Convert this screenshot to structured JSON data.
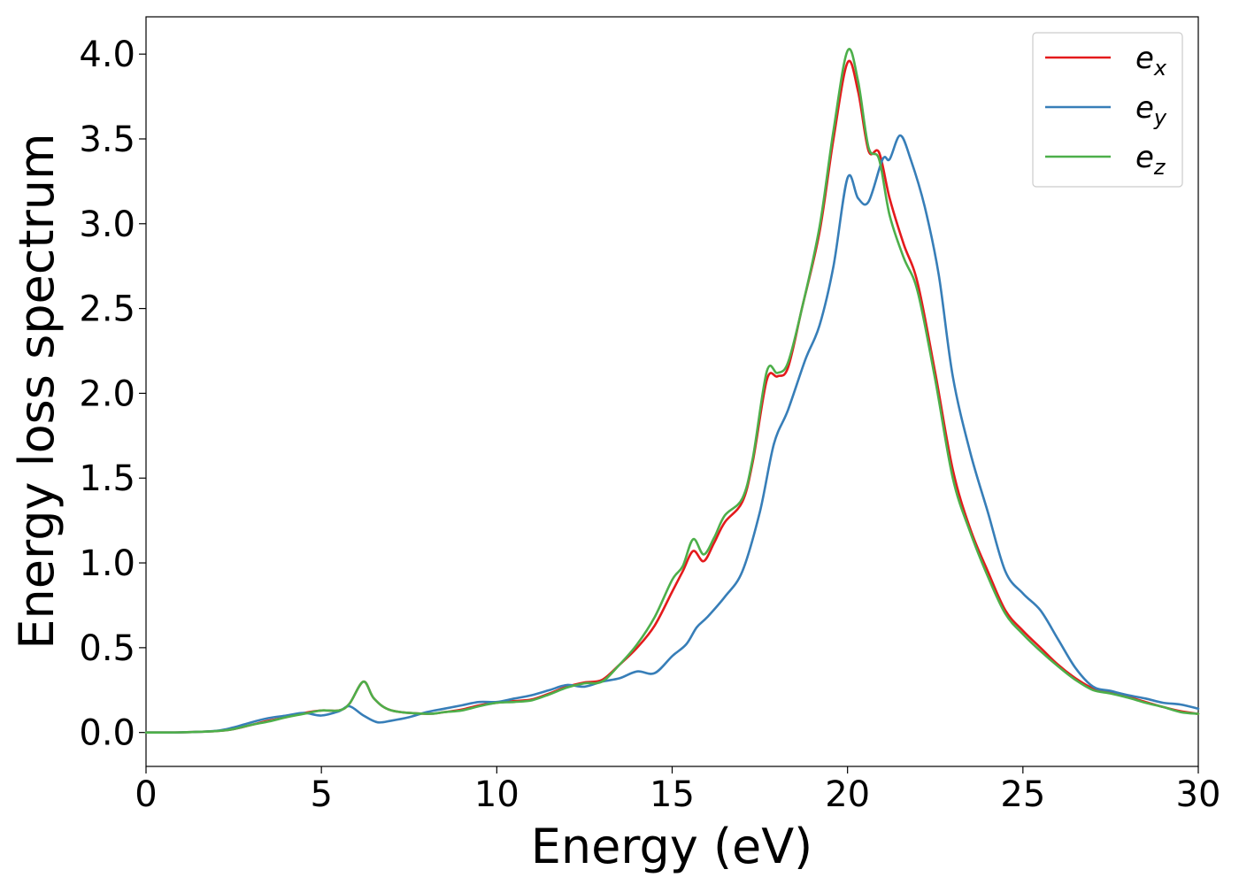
{
  "chart_data": {
    "type": "line",
    "title": "",
    "xlabel": "Energy (eV)",
    "ylabel": "Energy loss spectrum",
    "xlim": [
      0,
      30
    ],
    "ylim": [
      -0.2,
      4.22
    ],
    "xticks": [
      0,
      5,
      10,
      15,
      20,
      25,
      30
    ],
    "xtick_labels": [
      "0",
      "5",
      "10",
      "15",
      "20",
      "25",
      "30"
    ],
    "yticks": [
      0.0,
      0.5,
      1.0,
      1.5,
      2.0,
      2.5,
      3.0,
      3.5,
      4.0
    ],
    "ytick_labels": [
      "0.0",
      "0.5",
      "1.0",
      "1.5",
      "2.0",
      "2.5",
      "3.0",
      "3.5",
      "4.0"
    ],
    "legend_position": "top-right",
    "series": [
      {
        "name": "e_x",
        "label_main": "e",
        "label_sub": "x",
        "color": "#e41a1c",
        "points": [
          [
            0,
            0
          ],
          [
            1,
            0.001
          ],
          [
            2,
            0.008
          ],
          [
            2.5,
            0.02
          ],
          [
            3,
            0.045
          ],
          [
            3.5,
            0.07
          ],
          [
            4,
            0.09
          ],
          [
            4.5,
            0.115
          ],
          [
            5,
            0.13
          ],
          [
            5.5,
            0.13
          ],
          [
            5.8,
            0.17
          ],
          [
            6.2,
            0.3
          ],
          [
            6.5,
            0.2
          ],
          [
            7,
            0.13
          ],
          [
            8,
            0.11
          ],
          [
            8.5,
            0.12
          ],
          [
            9,
            0.135
          ],
          [
            9.5,
            0.16
          ],
          [
            10,
            0.175
          ],
          [
            10.5,
            0.185
          ],
          [
            11,
            0.195
          ],
          [
            11.5,
            0.23
          ],
          [
            12,
            0.27
          ],
          [
            12.5,
            0.295
          ],
          [
            13,
            0.31
          ],
          [
            13.5,
            0.4
          ],
          [
            14,
            0.5
          ],
          [
            14.5,
            0.63
          ],
          [
            15,
            0.83
          ],
          [
            15.3,
            0.95
          ],
          [
            15.6,
            1.07
          ],
          [
            15.9,
            1.01
          ],
          [
            16.2,
            1.12
          ],
          [
            16.5,
            1.24
          ],
          [
            17,
            1.36
          ],
          [
            17.3,
            1.6
          ],
          [
            17.7,
            2.08
          ],
          [
            18,
            2.1
          ],
          [
            18.3,
            2.15
          ],
          [
            18.7,
            2.5
          ],
          [
            19.2,
            2.95
          ],
          [
            19.6,
            3.5
          ],
          [
            20,
            3.95
          ],
          [
            20.3,
            3.78
          ],
          [
            20.6,
            3.43
          ],
          [
            20.9,
            3.42
          ],
          [
            21.2,
            3.15
          ],
          [
            21.6,
            2.88
          ],
          [
            22,
            2.65
          ],
          [
            22.5,
            2.12
          ],
          [
            23,
            1.55
          ],
          [
            23.5,
            1.2
          ],
          [
            24,
            0.95
          ],
          [
            24.5,
            0.72
          ],
          [
            25,
            0.6
          ],
          [
            25.5,
            0.5
          ],
          [
            26,
            0.4
          ],
          [
            26.5,
            0.32
          ],
          [
            27,
            0.26
          ],
          [
            27.5,
            0.235
          ],
          [
            28,
            0.21
          ],
          [
            28.5,
            0.18
          ],
          [
            29,
            0.15
          ],
          [
            29.5,
            0.125
          ],
          [
            30,
            0.11
          ]
        ]
      },
      {
        "name": "e_y",
        "label_main": "e",
        "label_sub": "y",
        "color": "#377eb8",
        "points": [
          [
            0,
            0
          ],
          [
            1,
            0.001
          ],
          [
            2,
            0.01
          ],
          [
            2.5,
            0.03
          ],
          [
            3,
            0.06
          ],
          [
            3.5,
            0.085
          ],
          [
            4,
            0.1
          ],
          [
            4.5,
            0.115
          ],
          [
            5,
            0.1
          ],
          [
            5.5,
            0.125
          ],
          [
            5.8,
            0.155
          ],
          [
            6.2,
            0.1
          ],
          [
            6.6,
            0.06
          ],
          [
            7,
            0.07
          ],
          [
            7.5,
            0.09
          ],
          [
            8,
            0.12
          ],
          [
            8.5,
            0.14
          ],
          [
            9,
            0.16
          ],
          [
            9.5,
            0.18
          ],
          [
            10,
            0.18
          ],
          [
            10.5,
            0.2
          ],
          [
            11,
            0.22
          ],
          [
            11.5,
            0.25
          ],
          [
            12,
            0.28
          ],
          [
            12.5,
            0.27
          ],
          [
            13,
            0.3
          ],
          [
            13.5,
            0.32
          ],
          [
            14,
            0.36
          ],
          [
            14.5,
            0.35
          ],
          [
            15,
            0.45
          ],
          [
            15.4,
            0.52
          ],
          [
            15.7,
            0.62
          ],
          [
            16,
            0.68
          ],
          [
            16.5,
            0.8
          ],
          [
            17,
            0.95
          ],
          [
            17.5,
            1.3
          ],
          [
            17.9,
            1.7
          ],
          [
            18.3,
            1.9
          ],
          [
            18.8,
            2.2
          ],
          [
            19.2,
            2.4
          ],
          [
            19.6,
            2.75
          ],
          [
            20,
            3.27
          ],
          [
            20.3,
            3.15
          ],
          [
            20.6,
            3.13
          ],
          [
            21,
            3.38
          ],
          [
            21.2,
            3.38
          ],
          [
            21.5,
            3.52
          ],
          [
            21.8,
            3.38
          ],
          [
            22.2,
            3.1
          ],
          [
            22.6,
            2.7
          ],
          [
            23,
            2.1
          ],
          [
            23.5,
            1.65
          ],
          [
            24,
            1.3
          ],
          [
            24.5,
            0.95
          ],
          [
            25,
            0.82
          ],
          [
            25.5,
            0.72
          ],
          [
            26,
            0.55
          ],
          [
            26.5,
            0.38
          ],
          [
            27,
            0.27
          ],
          [
            27.5,
            0.245
          ],
          [
            28,
            0.22
          ],
          [
            28.5,
            0.2
          ],
          [
            29,
            0.175
          ],
          [
            29.5,
            0.165
          ],
          [
            30,
            0.14
          ]
        ]
      },
      {
        "name": "e_z",
        "label_main": "e",
        "label_sub": "z",
        "color": "#4daf4a",
        "points": [
          [
            0,
            0
          ],
          [
            1,
            0.001
          ],
          [
            2,
            0.008
          ],
          [
            2.5,
            0.02
          ],
          [
            3,
            0.045
          ],
          [
            3.5,
            0.065
          ],
          [
            4,
            0.09
          ],
          [
            4.5,
            0.11
          ],
          [
            5,
            0.13
          ],
          [
            5.5,
            0.13
          ],
          [
            5.8,
            0.17
          ],
          [
            6.2,
            0.3
          ],
          [
            6.5,
            0.2
          ],
          [
            7,
            0.13
          ],
          [
            8,
            0.11
          ],
          [
            8.5,
            0.12
          ],
          [
            9,
            0.13
          ],
          [
            9.5,
            0.155
          ],
          [
            10,
            0.175
          ],
          [
            10.5,
            0.18
          ],
          [
            11,
            0.19
          ],
          [
            11.5,
            0.225
          ],
          [
            12,
            0.265
          ],
          [
            12.5,
            0.29
          ],
          [
            13,
            0.3
          ],
          [
            13.5,
            0.4
          ],
          [
            14,
            0.52
          ],
          [
            14.5,
            0.68
          ],
          [
            15,
            0.9
          ],
          [
            15.3,
            0.98
          ],
          [
            15.6,
            1.14
          ],
          [
            15.9,
            1.05
          ],
          [
            16.2,
            1.15
          ],
          [
            16.5,
            1.28
          ],
          [
            17,
            1.38
          ],
          [
            17.3,
            1.62
          ],
          [
            17.7,
            2.13
          ],
          [
            18,
            2.12
          ],
          [
            18.3,
            2.18
          ],
          [
            18.7,
            2.5
          ],
          [
            19.2,
            2.98
          ],
          [
            19.6,
            3.55
          ],
          [
            20,
            4.02
          ],
          [
            20.3,
            3.84
          ],
          [
            20.6,
            3.45
          ],
          [
            20.9,
            3.38
          ],
          [
            21.2,
            3.05
          ],
          [
            21.6,
            2.8
          ],
          [
            22,
            2.6
          ],
          [
            22.5,
            2.08
          ],
          [
            23,
            1.5
          ],
          [
            23.5,
            1.18
          ],
          [
            24,
            0.92
          ],
          [
            24.5,
            0.7
          ],
          [
            25,
            0.58
          ],
          [
            25.5,
            0.48
          ],
          [
            26,
            0.39
          ],
          [
            26.5,
            0.31
          ],
          [
            27,
            0.25
          ],
          [
            27.5,
            0.23
          ],
          [
            28,
            0.205
          ],
          [
            28.5,
            0.175
          ],
          [
            29,
            0.15
          ],
          [
            29.5,
            0.12
          ],
          [
            30,
            0.11
          ]
        ]
      }
    ]
  }
}
